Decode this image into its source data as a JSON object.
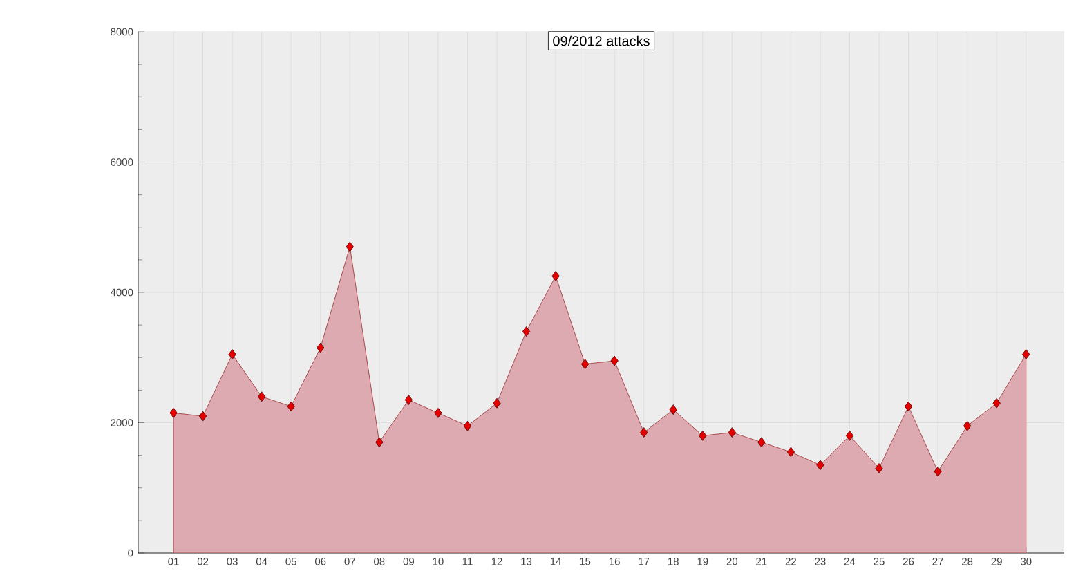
{
  "chart_data": {
    "type": "area",
    "title": "09/2012 attacks",
    "categories": [
      "01",
      "02",
      "03",
      "04",
      "05",
      "06",
      "07",
      "08",
      "09",
      "10",
      "11",
      "12",
      "13",
      "14",
      "15",
      "16",
      "17",
      "18",
      "19",
      "20",
      "21",
      "22",
      "23",
      "24",
      "25",
      "26",
      "27",
      "28",
      "29",
      "30"
    ],
    "series": [
      {
        "color": "#dcaab0",
        "values": [
          2150,
          2100,
          3050,
          2400,
          2250,
          3150,
          4700,
          1700,
          2350,
          2150,
          1950,
          2300,
          3400,
          4250,
          2900,
          2950,
          1850,
          2200,
          1800,
          1850,
          1700,
          1550,
          1350,
          1800,
          1300,
          2250,
          1250,
          1950,
          2300,
          3050
        ]
      }
    ],
    "ylim": [
      0,
      8000
    ],
    "yticks": [
      0,
      2000,
      4000,
      6000,
      8000
    ],
    "grid": true,
    "marker": "diamond"
  }
}
